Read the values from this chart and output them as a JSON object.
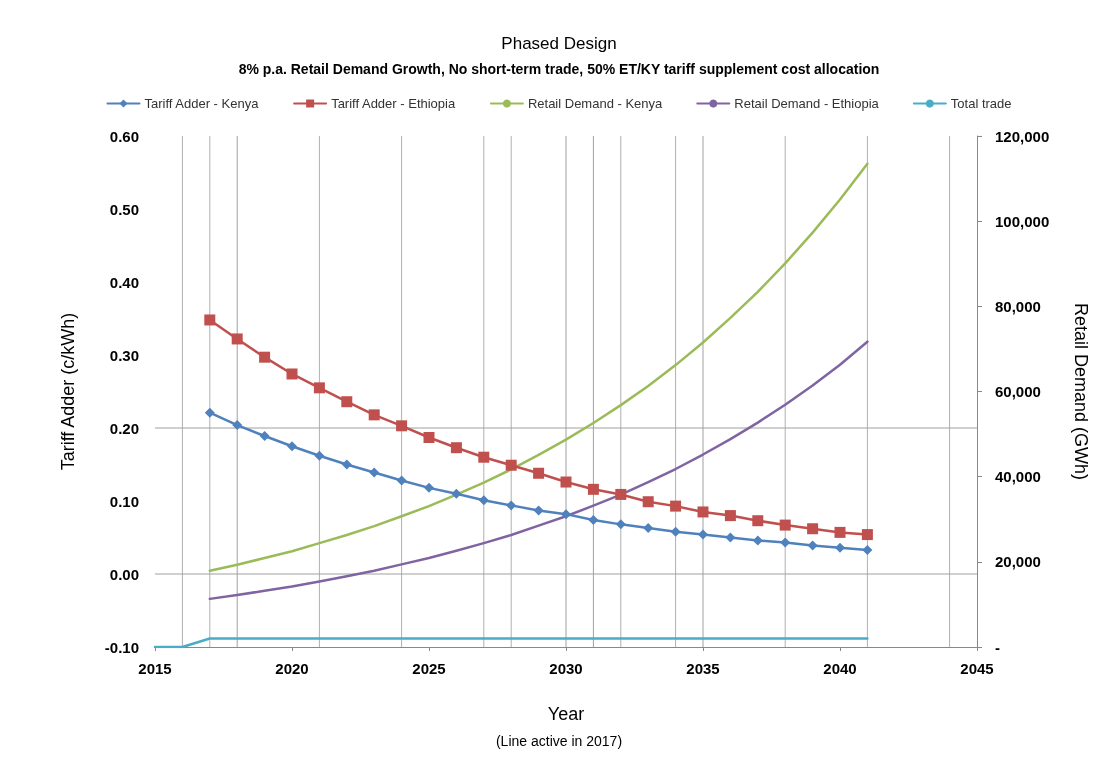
{
  "chart_data": {
    "type": "line",
    "title": "Phased Design",
    "subtitle": "8% p.a. Retail Demand Growth, No short-term trade, 50% ET/KY tariff supplement cost allocation",
    "xlabel": "Year",
    "ylabel": "Tariff Adder (c/kWh)",
    "y2label": "Retail Demand (GWh)",
    "annotations": [
      "(Line active in 2017)"
    ],
    "x": [
      2017,
      2018,
      2019,
      2020,
      2021,
      2022,
      2023,
      2024,
      2025,
      2026,
      2027,
      2028,
      2029,
      2030,
      2031,
      2032,
      2033,
      2034,
      2035,
      2036,
      2037,
      2038,
      2039,
      2040,
      2041
    ],
    "series": [
      {
        "name": "Tariff Adder - Kenya",
        "color": "#4f81bd",
        "marker": "diamond",
        "values": [
          0.221,
          0.204,
          0.189,
          0.175,
          0.162,
          0.15,
          0.139,
          0.128,
          0.118,
          0.11,
          0.101,
          0.094,
          0.087,
          0.082,
          0.074,
          0.068,
          0.063,
          0.058,
          0.054,
          0.05,
          0.046,
          0.043,
          0.039,
          0.036,
          0.033
        ]
      },
      {
        "name": "Tariff Adder - Ethiopia",
        "color": "#c0504d",
        "marker": "square",
        "values": [
          0.348,
          0.322,
          0.297,
          0.274,
          0.255,
          0.236,
          0.218,
          0.203,
          0.187,
          0.173,
          0.16,
          0.149,
          0.138,
          0.126,
          0.116,
          0.109,
          0.099,
          0.093,
          0.085,
          0.08,
          0.073,
          0.067,
          0.062,
          0.057,
          0.054
        ]
      },
      {
        "name": "Retail Demand - Kenya",
        "color": "#9bbb59",
        "marker": "none",
        "axis": "y2",
        "values": [
          17900,
          19300,
          20900,
          22500,
          24400,
          26300,
          28400,
          30700,
          33100,
          35800,
          38600,
          41700,
          45100,
          48700,
          52600,
          56800,
          61300,
          66200,
          71500,
          77300,
          83400,
          90100,
          97300,
          105100,
          113500
        ]
      },
      {
        "name": "Retail Demand - Ethiopia",
        "color": "#8064a2",
        "marker": "none",
        "axis": "y2",
        "values": [
          11300,
          12200,
          13200,
          14200,
          15400,
          16600,
          17900,
          19400,
          20900,
          22600,
          24400,
          26300,
          28500,
          30700,
          33200,
          35800,
          38700,
          41800,
          45200,
          48800,
          52700,
          56900,
          61400,
          66300,
          71700
        ]
      },
      {
        "name": "Total trade",
        "color": "#4bacc6",
        "marker": "none",
        "axis": "y2",
        "x": [
          2015,
          2016,
          2017,
          2018,
          2019,
          2020,
          2021,
          2022,
          2023,
          2024,
          2025,
          2026,
          2027,
          2028,
          2029,
          2030,
          2031,
          2032,
          2033,
          2034,
          2035,
          2036,
          2037,
          2038,
          2039,
          2040,
          2041
        ],
        "values": [
          0,
          0,
          2000,
          2000,
          2000,
          2000,
          2000,
          2000,
          2000,
          2000,
          2000,
          2000,
          2000,
          2000,
          2000,
          2000,
          2000,
          2000,
          2000,
          2000,
          2000,
          2000,
          2000,
          2000,
          2000,
          2000,
          2000
        ]
      }
    ],
    "xlim": [
      2015,
      2045
    ],
    "xticks": [
      2015,
      2020,
      2025,
      2030,
      2035,
      2040,
      2045
    ],
    "ylim": [
      -0.1,
      0.6
    ],
    "yticks": [
      {
        "value": -0.1,
        "label": "-0.10"
      },
      {
        "value": 0,
        "label": "0.00"
      },
      {
        "value": 0.1,
        "label": "0.10"
      },
      {
        "value": 0.2,
        "label": "0.20"
      },
      {
        "value": 0.3,
        "label": "0.30"
      },
      {
        "value": 0.4,
        "label": "0.40"
      },
      {
        "value": 0.5,
        "label": "0.50"
      },
      {
        "value": 0.6,
        "label": "0.60"
      }
    ],
    "y2lim": [
      0,
      120000
    ],
    "y2ticks": [
      {
        "value": 0,
        "label": "-"
      },
      {
        "value": 20000,
        "label": "20,000"
      },
      {
        "value": 40000,
        "label": "40,000"
      },
      {
        "value": 60000,
        "label": "60,000"
      },
      {
        "value": 80000,
        "label": "80,000"
      },
      {
        "value": 100000,
        "label": "100,000"
      },
      {
        "value": 120000,
        "label": "120,000"
      }
    ],
    "ref_lines": [
      {
        "axis": "y",
        "value": 0.2,
        "color": "#a0a0a0"
      },
      {
        "axis": "y",
        "value": 0,
        "color": "#a0a0a0"
      },
      {
        "axis": "x",
        "value": 2016,
        "color": "#b0b0b0"
      },
      {
        "axis": "x",
        "value": 2017,
        "color": "#b0b0b0"
      },
      {
        "axis": "x",
        "value": 2018,
        "color": "#a0a0a0"
      },
      {
        "axis": "x",
        "value": 2021,
        "color": "#b0b0b0"
      },
      {
        "axis": "x",
        "value": 2024,
        "color": "#b0b0b0"
      },
      {
        "axis": "x",
        "value": 2027,
        "color": "#b0b0b0"
      },
      {
        "axis": "x",
        "value": 2028,
        "color": "#b0b0b0"
      },
      {
        "axis": "x",
        "value": 2030,
        "color": "#a0a0a0"
      },
      {
        "axis": "x",
        "value": 2031,
        "color": "#a0a0a0"
      },
      {
        "axis": "x",
        "value": 2032,
        "color": "#b0b0b0"
      },
      {
        "axis": "x",
        "value": 2034,
        "color": "#b0b0b0"
      },
      {
        "axis": "x",
        "value": 2035,
        "color": "#a0a0a0"
      },
      {
        "axis": "x",
        "value": 2038,
        "color": "#b0b0b0"
      },
      {
        "axis": "x",
        "value": 2041,
        "color": "#b0b0b0"
      },
      {
        "axis": "x",
        "value": 2044,
        "color": "#b0b0b0"
      }
    ],
    "grid": false,
    "legend": "top"
  }
}
